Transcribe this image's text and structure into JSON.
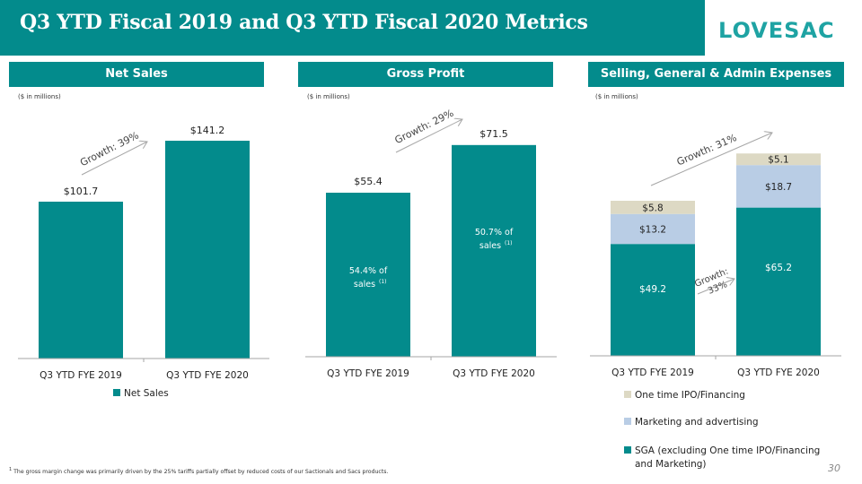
{
  "header": {
    "title": "Q3 YTD Fiscal 2019 and Q3 YTD Fiscal 2020 Metrics",
    "logo": "LOVESAC"
  },
  "colors": {
    "teal": "#038b8c",
    "marketing": "#b9cde5",
    "ipo": "#ddd9c4",
    "arrow": "#a6a6a6"
  },
  "panels": [
    {
      "title": "Net Sales",
      "units": "($ in millions)"
    },
    {
      "title": "Gross Profit",
      "units": "($ in millions)"
    },
    {
      "title": "Selling, General & Admin Expenses",
      "units": "($ in millions)"
    }
  ],
  "chart_data": [
    {
      "type": "bar",
      "title": "Net Sales",
      "units": "($ in millions)",
      "categories": [
        "Q3 YTD FYE 2019",
        "Q3 YTD FYE 2020"
      ],
      "series": [
        {
          "name": "Net Sales",
          "values": [
            101.7,
            141.2
          ]
        }
      ],
      "data_labels": [
        "$101.7",
        "$141.2"
      ],
      "annotations": [
        {
          "text": "Growth: 39%"
        }
      ],
      "legend": [
        "Net Sales"
      ],
      "legend_position": "bottom",
      "ylim": [
        0,
        150
      ],
      "grid": false
    },
    {
      "type": "bar",
      "title": "Gross Profit",
      "units": "($ in millions)",
      "categories": [
        "Q3 YTD FYE 2019",
        "Q3 YTD FYE 2020"
      ],
      "series": [
        {
          "name": "Gross Profit",
          "values": [
            55.4,
            71.5
          ]
        }
      ],
      "data_labels": [
        "$55.4",
        "$71.5"
      ],
      "inner_labels": [
        {
          "line1": "54.4% of",
          "line2": "sales",
          "sup": "(1)"
        },
        {
          "line1": "50.7% of",
          "line2": "sales",
          "sup": "(1)"
        }
      ],
      "annotations": [
        {
          "text": "Growth: 29%"
        }
      ],
      "ylim": [
        0,
        75
      ],
      "grid": false
    },
    {
      "type": "bar",
      "stacked": true,
      "title": "Selling, General & Admin Expenses",
      "units": "($ in millions)",
      "categories": [
        "Q3 YTD FYE 2019",
        "Q3 YTD FYE 2020"
      ],
      "series": [
        {
          "name": "SGA (excluding One time IPO/Financing and Marketing)",
          "values": [
            49.2,
            65.2
          ],
          "labels": [
            "$49.2",
            "$65.2"
          ]
        },
        {
          "name": "Marketing and advertising",
          "values": [
            13.2,
            18.7
          ],
          "labels": [
            "$13.2",
            "$18.7"
          ]
        },
        {
          "name": "One time IPO/Financing",
          "values": [
            5.8,
            5.1
          ],
          "labels": [
            "$5.8",
            "$5.1"
          ]
        }
      ],
      "annotations": [
        {
          "text": "Growth: 31%"
        },
        {
          "text": "Growth:",
          "text2": "33%"
        }
      ],
      "legend": [
        "One time IPO/Financing",
        "Marketing and advertising",
        "SGA (excluding One time IPO/Financing",
        "and Marketing)"
      ],
      "legend_position": "bottom",
      "ylim": [
        0,
        100
      ],
      "grid": false
    }
  ],
  "footnote": {
    "sup": "1",
    "text": "The gross margin change was primarily driven by the 25% tariffs partially offset by reduced costs of our Sactionals and Sacs products."
  },
  "page_number": "30"
}
